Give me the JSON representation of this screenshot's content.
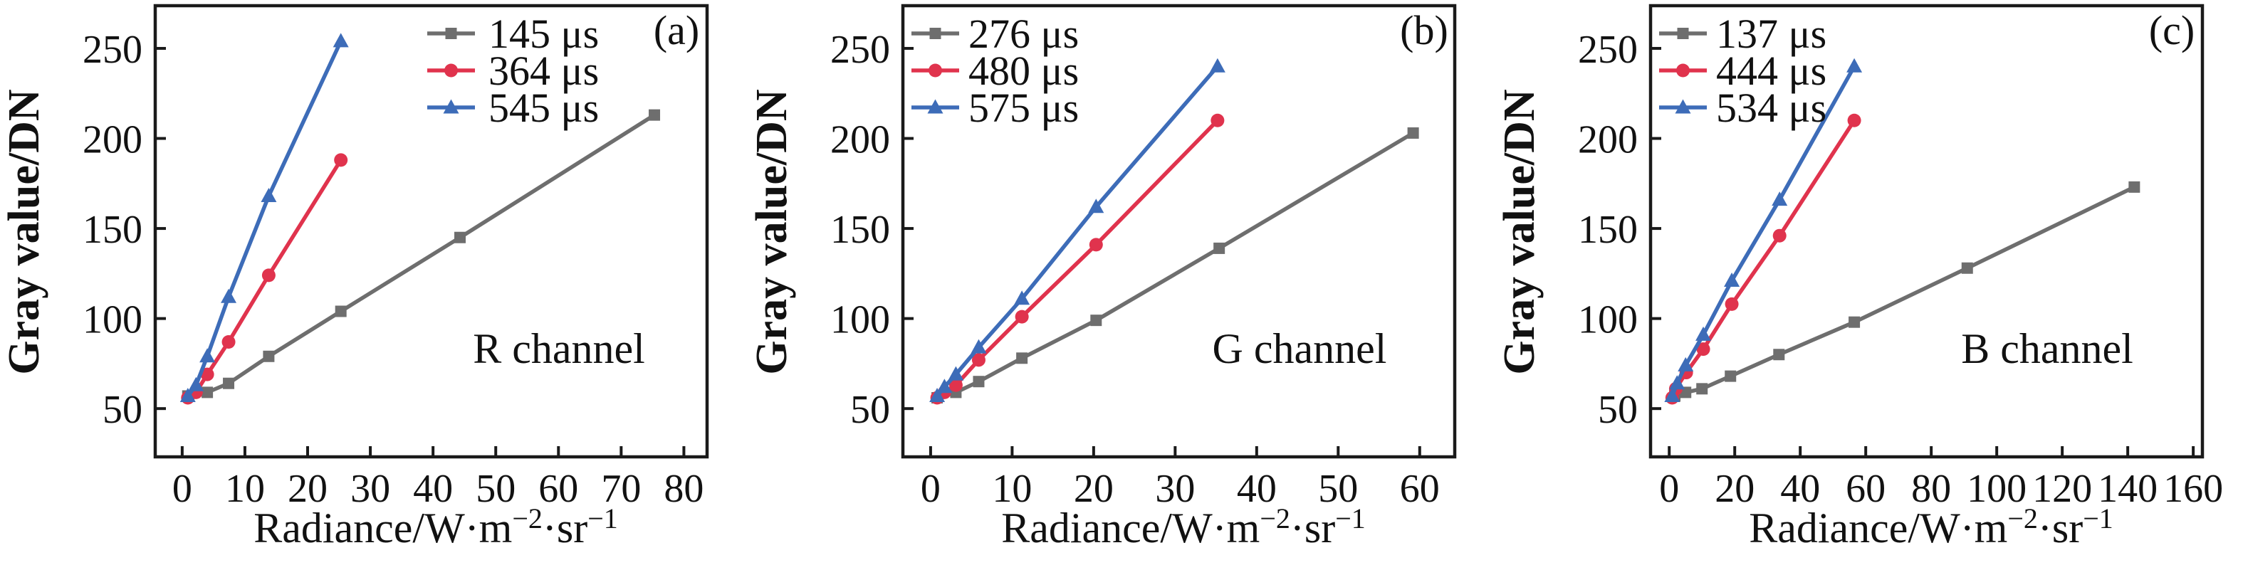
{
  "colors": {
    "gray": "#6e6e6e",
    "red": "#e0334d",
    "blue": "#3d6cb8",
    "axis": "#1a1a1a",
    "text": "#111111",
    "background": "#ffffff"
  },
  "chart_data": [
    {
      "type": "line",
      "panel_tag": "(a)",
      "channel_label": "R channel",
      "ylabel": "Gray value/DN",
      "xlabel": "Radiance/W·m⁻²·sr⁻¹",
      "xlabel_parts": [
        "Radiance/W·m",
        "−2",
        "·sr",
        "−1"
      ],
      "xlim": [
        -4.3,
        83.7
      ],
      "ylim": [
        23.2,
        273.7
      ],
      "xticks": [
        0,
        10,
        20,
        30,
        40,
        50,
        60,
        70,
        80
      ],
      "yticks": [
        50,
        100,
        150,
        200,
        250
      ],
      "grid": false,
      "legend_position": "top-center-right-inside",
      "series": [
        {
          "name": "145 μs",
          "color_key": "gray",
          "marker": "square",
          "x": [
            0.9,
            4.0,
            7.4,
            13.8,
            25.3,
            44.3,
            75.3
          ],
          "y": [
            57,
            59,
            64,
            79,
            104,
            145,
            213
          ]
        },
        {
          "name": "364 μs",
          "color_key": "red",
          "marker": "circle",
          "x": [
            0.9,
            2.2,
            4.0,
            7.4,
            13.8,
            25.3
          ],
          "y": [
            56,
            59,
            69,
            87,
            124,
            188
          ]
        },
        {
          "name": "545 μs",
          "color_key": "blue",
          "marker": "triangle",
          "x": [
            0.9,
            2.2,
            4.0,
            7.4,
            13.8,
            25.3
          ],
          "y": [
            57,
            63,
            79,
            112,
            168,
            254
          ]
        }
      ]
    },
    {
      "type": "line",
      "panel_tag": "(b)",
      "channel_label": "G channel",
      "ylabel": "Gray value/DN",
      "xlabel": "Radiance/W·m⁻²·sr⁻¹",
      "xlabel_parts": [
        "Radiance/W·m",
        "−2",
        "·sr",
        "−1"
      ],
      "xlim": [
        -3.4,
        64.3
      ],
      "ylim": [
        23.2,
        273.7
      ],
      "xticks": [
        0,
        10,
        20,
        30,
        40,
        50,
        60
      ],
      "yticks": [
        50,
        100,
        150,
        200,
        250
      ],
      "grid": false,
      "legend_position": "top-left-inside",
      "series": [
        {
          "name": "276 μs",
          "color_key": "gray",
          "marker": "square",
          "x": [
            0.8,
            3.1,
            5.9,
            11.2,
            20.3,
            35.4,
            59.2
          ],
          "y": [
            56,
            59,
            65,
            78,
            99,
            139,
            203
          ]
        },
        {
          "name": "480 μs",
          "color_key": "red",
          "marker": "circle",
          "x": [
            0.8,
            1.7,
            3.1,
            5.9,
            11.2,
            20.3,
            35.2
          ],
          "y": [
            56,
            59,
            63,
            77,
            101,
            141,
            210
          ]
        },
        {
          "name": "575 μs",
          "color_key": "blue",
          "marker": "triangle",
          "x": [
            0.8,
            1.7,
            3.1,
            5.9,
            11.2,
            20.3,
            35.2
          ],
          "y": [
            57,
            62,
            69,
            84,
            111,
            162,
            240
          ]
        }
      ]
    },
    {
      "type": "line",
      "panel_tag": "(c)",
      "channel_label": "B channel",
      "ylabel": "Gray value/DN",
      "xlabel": "Radiance/W·m⁻²·sr⁻¹",
      "xlabel_parts": [
        "Radiance/W·m",
        "−2",
        "·sr",
        "−1"
      ],
      "xlim": [
        -5.7,
        162.8
      ],
      "ylim": [
        23.2,
        273.7
      ],
      "xticks": [
        0,
        20,
        40,
        60,
        80,
        100,
        120,
        140,
        160
      ],
      "yticks": [
        50,
        100,
        150,
        200,
        250
      ],
      "grid": false,
      "legend_position": "top-left-inside",
      "series": [
        {
          "name": "137 μs",
          "color_key": "gray",
          "marker": "square",
          "x": [
            1.7,
            5.0,
            10.0,
            18.7,
            33.5,
            56.5,
            91.0,
            142.0
          ],
          "y": [
            57,
            59,
            61,
            68,
            80,
            98,
            128,
            173
          ]
        },
        {
          "name": "444 μs",
          "color_key": "red",
          "marker": "circle",
          "x": [
            0.9,
            2.0,
            5.2,
            10.4,
            19.1,
            33.7,
            56.5
          ],
          "y": [
            56,
            61,
            70,
            83,
            108,
            146,
            210
          ]
        },
        {
          "name": "534 μs",
          "color_key": "blue",
          "marker": "triangle",
          "x": [
            0.9,
            2.4,
            5.0,
            10.4,
            19.1,
            33.7,
            56.5
          ],
          "y": [
            57,
            64,
            74,
            91,
            121,
            166,
            240
          ]
        }
      ]
    }
  ]
}
